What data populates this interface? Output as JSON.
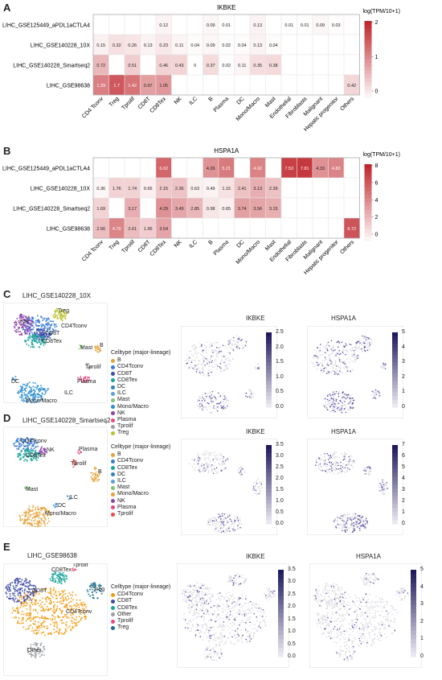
{
  "panels": {
    "A": "A",
    "B": "B",
    "C": "C",
    "D": "D",
    "E": "E"
  },
  "heatmap_A": {
    "title": "IKBKE",
    "legend_title": "log(TPM/10+1)",
    "legend_ticks": [
      "2",
      "1",
      "0"
    ],
    "colors": {
      "low": "#ffffff",
      "high": "#c0272d"
    },
    "vmax": 2.2
  },
  "heatmap_B": {
    "title": "HSPA1A",
    "legend_title": "log(TPM/10+1)",
    "legend_ticks": [
      "8",
      "6",
      "4",
      "2",
      "0"
    ],
    "colors": {
      "low": "#ffffff",
      "high": "#c0272d"
    },
    "vmax": 8.5
  },
  "chart_data": [
    {
      "type": "heatmap",
      "title": "IKBKE",
      "rows": [
        "LIHC_GSE125449_aPDL1aCTLA4",
        "LIHC_GSE140228_10X",
        "LIHC_GSE140228_Smartseq2",
        "LIHC_GSE98638"
      ],
      "columns": [
        "CD4 Tconv",
        "Treg",
        "Tprolif",
        "CD8T",
        "CD8Tex",
        "NK",
        "ILC",
        "B",
        "Plasma",
        "DC",
        "Mono/Macro",
        "Mast",
        "Endothelial",
        "Fibroblasts",
        "Malignant",
        "Hepatic progenitor",
        "Others"
      ],
      "values": [
        [
          null,
          null,
          null,
          null,
          0.12,
          null,
          null,
          0.09,
          0.01,
          null,
          0.13,
          null,
          0.01,
          0.01,
          0.09,
          0.03,
          null
        ],
        [
          0.15,
          0.32,
          0.26,
          0.13,
          0.23,
          0.11,
          0.04,
          0.09,
          0.02,
          0.04,
          0.13,
          0.04,
          null,
          null,
          null,
          null,
          null
        ],
        [
          0.72,
          null,
          0.51,
          null,
          0.46,
          0.43,
          0,
          0.37,
          0.02,
          0.11,
          0.35,
          0.38,
          null,
          null,
          null,
          null,
          null
        ],
        [
          1.29,
          1.7,
          1.42,
          0.97,
          1.05,
          null,
          null,
          null,
          null,
          null,
          null,
          null,
          null,
          null,
          null,
          null,
          0.42
        ]
      ],
      "legend_title": "log(TPM/10+1)"
    },
    {
      "type": "heatmap",
      "title": "HSPA1A",
      "rows": [
        "LIHC_GSE125449_aPDL1aCTLA4",
        "LIHC_GSE140228_10X",
        "LIHC_GSE140228_Smartseq2",
        "LIHC_GSE98638"
      ],
      "columns": [
        "CD4 Tconv",
        "Treg",
        "Tprolif",
        "CD8T",
        "CD8Tex",
        "NK",
        "ILC",
        "B",
        "Plasma",
        "DC",
        "Mono/Macro",
        "Mast",
        "Endothelial",
        "Fibroblasts",
        "Malignant",
        "Hepatic progenitor",
        "Others"
      ],
      "values": [
        [
          null,
          null,
          null,
          null,
          6.02,
          null,
          null,
          4.26,
          5.21,
          null,
          4.92,
          null,
          7.53,
          7.81,
          4.33,
          4.83,
          null
        ],
        [
          0.36,
          1.76,
          1.74,
          0.65,
          2.15,
          2.36,
          0.63,
          0.49,
          1.15,
          2.41,
          3.13,
          2.39,
          null,
          null,
          null,
          null,
          null
        ],
        [
          1.69,
          null,
          3.17,
          null,
          4.29,
          3.49,
          2.85,
          0.98,
          0.65,
          3.74,
          3.56,
          3.15,
          null,
          null,
          null,
          null,
          null
        ],
        [
          2.56,
          4.79,
          2.61,
          1.95,
          3.54,
          null,
          null,
          null,
          null,
          null,
          null,
          null,
          null,
          null,
          null,
          null,
          6.72
        ]
      ],
      "legend_title": "log(TPM/10+1)"
    }
  ],
  "umap_C": {
    "title": "LIHC_GSE140228_10X",
    "legend_title": "Celltype (major-lineage)",
    "legend": [
      {
        "name": "B",
        "color": "#e6a23c"
      },
      {
        "name": "CD4Tconv",
        "color": "#3a7bd5"
      },
      {
        "name": "CD8T",
        "color": "#3d4aa8"
      },
      {
        "name": "CD8Tex",
        "color": "#1aa59a"
      },
      {
        "name": "DC",
        "color": "#2e86c1"
      },
      {
        "name": "ILC",
        "color": "#5aa0d8"
      },
      {
        "name": "Mast",
        "color": "#7cc576"
      },
      {
        "name": "Mono/Macro",
        "color": "#2f8fd0"
      },
      {
        "name": "NK",
        "color": "#8e44ad"
      },
      {
        "name": "Plasma",
        "color": "#e84a7f"
      },
      {
        "name": "Tprolif",
        "color": "#9aa0a6"
      },
      {
        "name": "Treg",
        "color": "#b8c22b"
      }
    ],
    "labels": [
      "Treg",
      "NK",
      "CD4Tconv",
      "CD8T",
      "CD8Tex",
      "Mast",
      "B",
      "Tprolif",
      "Plasma",
      "DC",
      "ILC",
      "Mono/Macro"
    ],
    "gene1": "IKBKE",
    "gene2": "HSPA1A",
    "scale1": [
      "2.5",
      "2.0",
      "1.5",
      "1.0",
      "0.5",
      "0.0"
    ],
    "scale2": [
      "5",
      "4",
      "3",
      "2",
      "1",
      "0"
    ]
  },
  "umap_D": {
    "title": "LIHC_GSE140228_Smartseq2",
    "legend_title": "Celltype (major-lineage)",
    "legend": [
      {
        "name": "B",
        "color": "#e6a23c"
      },
      {
        "name": "CD4Tconv",
        "color": "#3a7bd5"
      },
      {
        "name": "CD8Tex",
        "color": "#1aa59a"
      },
      {
        "name": "DC",
        "color": "#2e86c1"
      },
      {
        "name": "ILC",
        "color": "#5aa0d8"
      },
      {
        "name": "Mast",
        "color": "#7cc576"
      },
      {
        "name": "Mono/Macro",
        "color": "#e6a23c"
      },
      {
        "name": "NK",
        "color": "#8e44ad"
      },
      {
        "name": "Plasma",
        "color": "#e84a7f"
      },
      {
        "name": "Tprolif",
        "color": "#e84a4a"
      }
    ],
    "labels": [
      "CD4Tconv",
      "CD8Tex",
      "NK",
      "Plasma",
      "Tprolif",
      "B",
      "Mast",
      "ILC",
      "DC",
      "Mono/Macro"
    ],
    "gene1": "IKBKE",
    "gene2": "HSPA1A",
    "scale1": [
      "3.5",
      "3.0",
      "2.5",
      "2.0",
      "1.5",
      "1.0",
      "0.5",
      "0.0"
    ],
    "scale2": [
      "7",
      "6",
      "5",
      "4",
      "3",
      "2",
      "1",
      "0"
    ]
  },
  "umap_E": {
    "title": "LIHC_GSE98638",
    "legend_title": "Celltype (major-lineage)",
    "legend": [
      {
        "name": "CD4Tconv",
        "color": "#f39c12"
      },
      {
        "name": "CD8T",
        "color": "#3d4aa8"
      },
      {
        "name": "CD8Tex",
        "color": "#1aa59a"
      },
      {
        "name": "Other",
        "color": "#9aa0a6"
      },
      {
        "name": "Tprolif",
        "color": "#e84a7f"
      },
      {
        "name": "Treg",
        "color": "#1a6f8a"
      }
    ],
    "labels": [
      "Tprolif",
      "CD8Tex",
      "Treg",
      "CD8T",
      "CD4Tconv",
      "Other"
    ],
    "gene1": "IKBKE",
    "gene2": "HSPA1A",
    "scale1": [
      "3.5",
      "3.0",
      "2.5",
      "2.0",
      "1.5",
      "1.0",
      "0.5",
      "0.0"
    ],
    "scale2": [
      "5",
      "4",
      "3",
      "2",
      "1",
      "0"
    ]
  }
}
